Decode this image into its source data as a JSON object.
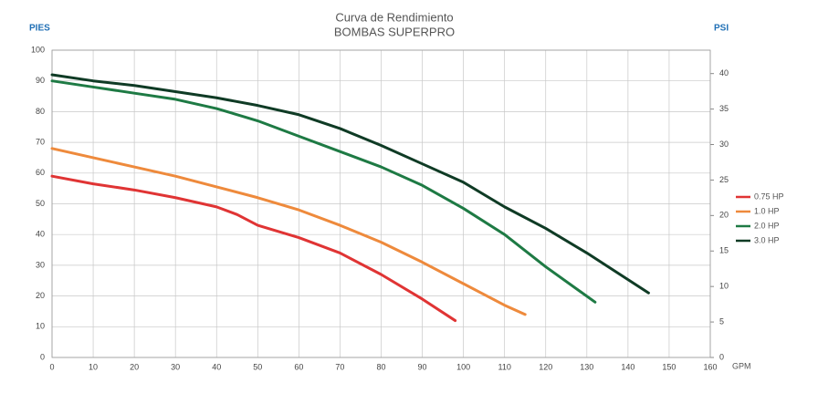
{
  "chart_data": {
    "type": "line",
    "title": "Curva de Rendimiento",
    "subtitle": "BOMBAS SUPERPRO",
    "y_label": "PIES",
    "y2_label": "PSI",
    "x_label": "GPM",
    "xlim": [
      0,
      160
    ],
    "xticks": [
      0,
      10,
      20,
      30,
      40,
      50,
      60,
      70,
      80,
      90,
      100,
      110,
      120,
      130,
      140,
      150,
      160
    ],
    "ylim": [
      0,
      100
    ],
    "yticks": [
      0,
      10,
      20,
      30,
      40,
      50,
      60,
      70,
      80,
      90,
      100
    ],
    "y2lim": [
      0,
      43.3
    ],
    "y2ticks": [
      0,
      5,
      10,
      15,
      20,
      25,
      30,
      35,
      40
    ],
    "grid": true,
    "legend": "right",
    "series": [
      {
        "name": "0.75 HP",
        "color": "#e03434",
        "x": [
          0,
          10,
          20,
          30,
          40,
          45,
          50,
          60,
          70,
          80,
          90,
          98
        ],
        "values": [
          59,
          56.5,
          54.5,
          52,
          49,
          46.5,
          43,
          39,
          34,
          27,
          19,
          12
        ]
      },
      {
        "name": "1.0 HP",
        "color": "#ee8a3c",
        "x": [
          0,
          10,
          20,
          30,
          40,
          50,
          60,
          70,
          80,
          90,
          100,
          110,
          115
        ],
        "values": [
          68,
          65,
          62,
          59,
          55.5,
          52,
          48,
          43,
          37.5,
          31,
          24,
          17,
          14
        ]
      },
      {
        "name": "2.0 HP",
        "color": "#1e7a44",
        "x": [
          0,
          10,
          20,
          30,
          40,
          50,
          60,
          70,
          80,
          90,
          100,
          110,
          120,
          132
        ],
        "values": [
          90,
          88,
          86,
          84,
          81,
          77,
          72,
          67,
          62,
          56,
          48.5,
          40,
          29.5,
          18
        ]
      },
      {
        "name": "3.0 HP",
        "color": "#0f3b25",
        "x": [
          0,
          10,
          20,
          30,
          40,
          50,
          60,
          70,
          80,
          90,
          100,
          110,
          120,
          130,
          145
        ],
        "values": [
          92,
          90,
          88.5,
          86.5,
          84.5,
          82,
          79,
          74.5,
          69,
          63,
          57,
          49,
          42,
          34,
          21
        ]
      }
    ]
  }
}
